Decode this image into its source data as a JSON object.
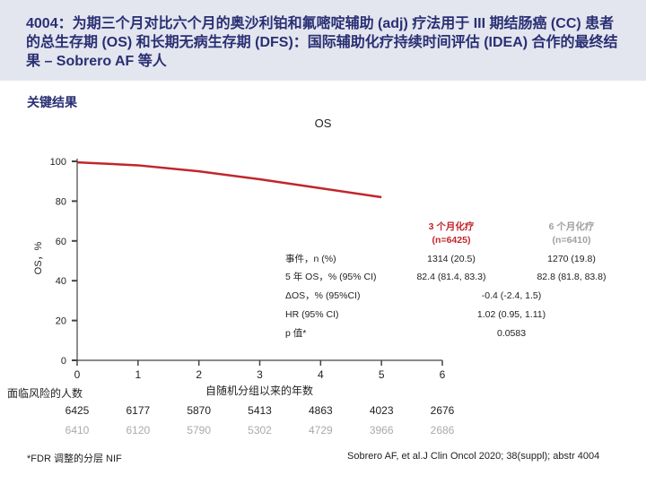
{
  "header": {
    "title": "4004：为期三个月对比六个月的奥沙利铂和氟嘧啶辅助 (adj) 疗法用于 III 期结肠癌 (CC) 患者的总生存期 (OS) 和长期无病生存期 (DFS)：国际辅助化疗持续时间评估 (IDEA) 合作的最终结果 – Sobrero AF 等人"
  },
  "section_label": "关键结果",
  "chart_data": {
    "type": "line",
    "title": "OS",
    "xlabel": "自随机分组以来的年数",
    "ylabel": "OS，%",
    "xlim": [
      0,
      6
    ],
    "ylim": [
      0,
      100
    ],
    "x_ticks": [
      "0",
      "1",
      "2",
      "3",
      "4",
      "5",
      "6"
    ],
    "y_ticks": [
      "0",
      "20",
      "40",
      "60",
      "80",
      "100"
    ],
    "grid": false,
    "series": [
      {
        "color": "#c0262c",
        "x": [
          0,
          1,
          2,
          3,
          4,
          5
        ],
        "y": [
          99.5,
          98.0,
          95.0,
          91.0,
          86.5,
          82.0
        ]
      }
    ]
  },
  "results_table": {
    "arm3": {
      "label": "3 个月化疗",
      "n": "(n=6425)",
      "color": "#c0262c"
    },
    "arm6": {
      "label": "6 个月化疗",
      "n": "(n=6410)",
      "color": "#a0a0a0"
    },
    "rows": [
      {
        "label": "事件，n (%)",
        "v3": "1314 (20.5)",
        "v6": "1270 (19.8)"
      },
      {
        "label": "5 年 OS，% (95% CI)",
        "v3": "82.4 (81.4, 83.3)",
        "v6": "82.8 (81.8, 83.8)"
      },
      {
        "label": "ΔOS，% (95%CI)",
        "combined": "-0.4 (-2.4, 1.5)"
      },
      {
        "label": "HR (95% CI)",
        "combined": "1.02 (0.95, 1.11)"
      },
      {
        "label": "p 值*",
        "combined": "0.0583"
      }
    ]
  },
  "at_risk": {
    "label": "面临风险的人数",
    "row3": [
      "6425",
      "6177",
      "5870",
      "5413",
      "4863",
      "4023",
      "2676"
    ],
    "row6": [
      "6410",
      "6120",
      "5790",
      "5302",
      "4729",
      "3966",
      "2686"
    ]
  },
  "footnote": "*FDR 调整的分层 NIF",
  "source": "Sobrero AF, et al.J Clin Oncol 2020; 38(suppl); abstr 4004"
}
